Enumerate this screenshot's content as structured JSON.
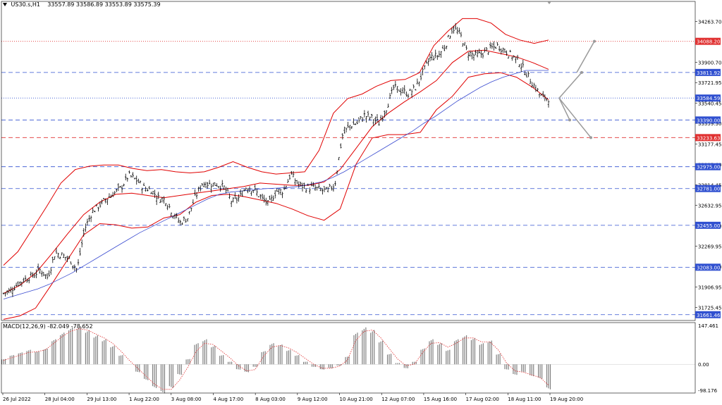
{
  "header": {
    "symbol": "US30.s,H1",
    "ohlc": "33557.89 33586.89 33553.89 33575.39"
  },
  "macd_header": "MACD(12,26,9) -82.049 -78.652",
  "colors": {
    "price_bar": "#000000",
    "bollinger": "#e00000",
    "ma": "#3a4bd0",
    "hline_blue": "#3050d0",
    "hline_red": "#e03030",
    "macd_hist": "#7f7f7f",
    "macd_signal": "#e03030",
    "arrow": "#9a9a9a"
  },
  "chart_data": [
    {
      "type": "candlestick",
      "title": "US30.s,H1",
      "ylim": [
        31610,
        34380
      ],
      "y_ticks": [
        "34263.70",
        "33900.70",
        "33721.95",
        "33540.45",
        "33359.30",
        "33177.45",
        "32995.60",
        "32814.45",
        "32632.95",
        "32451.10",
        "32269.95",
        "32088.10",
        "31906.95",
        "31725.45"
      ],
      "x_ticks": [
        "26 Jul 2022",
        "28 Jul 04:00",
        "29 Jul 13:00",
        "1 Aug 22:00",
        "3 Aug 08:00",
        "4 Aug 17:00",
        "8 Aug 03:00",
        "9 Aug 12:00",
        "10 Aug 21:00",
        "12 Aug 07:00",
        "15 Aug 16:00",
        "17 Aug 02:00",
        "18 Aug 11:00",
        "19 Aug 20:00"
      ],
      "levels": [
        {
          "label": "34088.20",
          "value": 34088.2,
          "style": "red-dotted"
        },
        {
          "label": "33811.92",
          "value": 33811.92,
          "style": "blue-dashed"
        },
        {
          "label": "33584.59",
          "value": 33584.59,
          "style": "blue-dotted"
        },
        {
          "label": "33390.00",
          "value": 33390.0,
          "style": "blue-dashed"
        },
        {
          "label": "33233.63",
          "value": 33233.63,
          "style": "red-dashed"
        },
        {
          "label": "32975.00",
          "value": 32975.0,
          "style": "blue-dashed"
        },
        {
          "label": "32781.00",
          "value": 32781.0,
          "style": "blue-dashed"
        },
        {
          "label": "32455.00",
          "value": 32455.0,
          "style": "blue-dashed"
        },
        {
          "label": "32083.00",
          "value": 32083.0,
          "style": "blue-dashed"
        },
        {
          "label": "31661.46",
          "value": 31661.46,
          "style": "blue-dashed"
        }
      ],
      "close_series": [
        31850,
        31880,
        31940,
        31980,
        32010,
        32060,
        31990,
        32210,
        32190,
        32150,
        32060,
        32420,
        32570,
        32630,
        32690,
        32740,
        32790,
        32900,
        32860,
        32790,
        32770,
        32700,
        32680,
        32560,
        32480,
        32520,
        32700,
        32830,
        32820,
        32820,
        32790,
        32660,
        32700,
        32800,
        32770,
        32700,
        32640,
        32760,
        32760,
        32910,
        32820,
        32790,
        32790,
        32770,
        32760,
        32820,
        33250,
        33340,
        33360,
        33430,
        33410,
        33360,
        33500,
        33680,
        33650,
        33620,
        33680,
        33820,
        33950,
        33960,
        34050,
        34210,
        34150,
        33990,
        33960,
        33980,
        34020,
        34050,
        34010,
        33960,
        33910,
        33800,
        33700,
        33600,
        33580
      ],
      "ma_series": [
        31800,
        31830,
        31860,
        31890,
        31930,
        31980,
        32030,
        32090,
        32150,
        32210,
        32270,
        32330,
        32390,
        32440,
        32490,
        32540,
        32590,
        32640,
        32690,
        32730,
        32750,
        32760,
        32770,
        32780,
        32785,
        32790,
        32800,
        32820,
        32840,
        32880,
        32930,
        32990,
        33050,
        33110,
        33170,
        33230,
        33290,
        33360,
        33420,
        33490,
        33560,
        33620,
        33680,
        33730,
        33770,
        33800,
        33830,
        33830,
        33830
      ],
      "bb_upper": [
        32100,
        32220,
        32420,
        32620,
        32830,
        32950,
        32980,
        32990,
        32990,
        32960,
        32940,
        32950,
        32930,
        32920,
        32930,
        32970,
        33020,
        32970,
        32930,
        32910,
        32920,
        32930,
        33120,
        33450,
        33580,
        33620,
        33690,
        33740,
        33750,
        33810,
        34050,
        34180,
        34290,
        34290,
        34250,
        34150,
        34100,
        34070,
        34100
      ],
      "bb_middle": [
        31850,
        31920,
        32030,
        32200,
        32380,
        32550,
        32660,
        32730,
        32740,
        32720,
        32700,
        32720,
        32740,
        32760,
        32780,
        32800,
        32830,
        32820,
        32810,
        32810,
        32840,
        32950,
        33140,
        33330,
        33450,
        33550,
        33640,
        33740,
        33900,
        34000,
        34010,
        33980,
        33950,
        33900,
        33840
      ],
      "bb_lower": [
        31620,
        31650,
        31720,
        31930,
        32150,
        32370,
        32470,
        32460,
        32430,
        32440,
        32520,
        32550,
        32660,
        32720,
        32730,
        32710,
        32680,
        32650,
        32600,
        32540,
        32500,
        32600,
        33000,
        33230,
        33260,
        33260,
        33280,
        33480,
        33600,
        33770,
        33800,
        33810,
        33770,
        33680,
        33570
      ],
      "projection": {
        "from": 33584,
        "targets": [
          34088.2,
          33811.92,
          33390.0,
          33233.63
        ]
      }
    },
    {
      "type": "bar",
      "title": "MACD(12,26,9)",
      "ylim": [
        -98.176,
        147.461
      ],
      "y_ticks": [
        "147.461",
        "0.00",
        "-98.176"
      ],
      "histogram": [
        20,
        35,
        45,
        55,
        50,
        60,
        95,
        120,
        140,
        145,
        130,
        110,
        95,
        70,
        35,
        0,
        -30,
        -60,
        -90,
        -110,
        -90,
        -40,
        20,
        80,
        95,
        70,
        35,
        10,
        -20,
        -30,
        -10,
        50,
        80,
        75,
        55,
        35,
        10,
        -10,
        -20,
        -15,
        -5,
        30,
        120,
        140,
        130,
        90,
        40,
        5,
        -15,
        10,
        60,
        95,
        80,
        55,
        95,
        110,
        100,
        80,
        90,
        40,
        -20,
        -40,
        -30,
        -45,
        -55,
        -95
      ],
      "signal": [
        15,
        25,
        35,
        45,
        48,
        55,
        80,
        105,
        125,
        135,
        130,
        115,
        100,
        80,
        50,
        15,
        -15,
        -45,
        -75,
        -95,
        -95,
        -60,
        -10,
        50,
        80,
        75,
        50,
        25,
        -5,
        -25,
        -20,
        30,
        65,
        72,
        62,
        45,
        22,
        0,
        -15,
        -15,
        -8,
        15,
        90,
        125,
        130,
        100,
        60,
        20,
        -5,
        0,
        45,
        80,
        82,
        65,
        80,
        100,
        100,
        85,
        85,
        55,
        5,
        -25,
        -30,
        -40,
        -50,
        -79
      ]
    }
  ]
}
